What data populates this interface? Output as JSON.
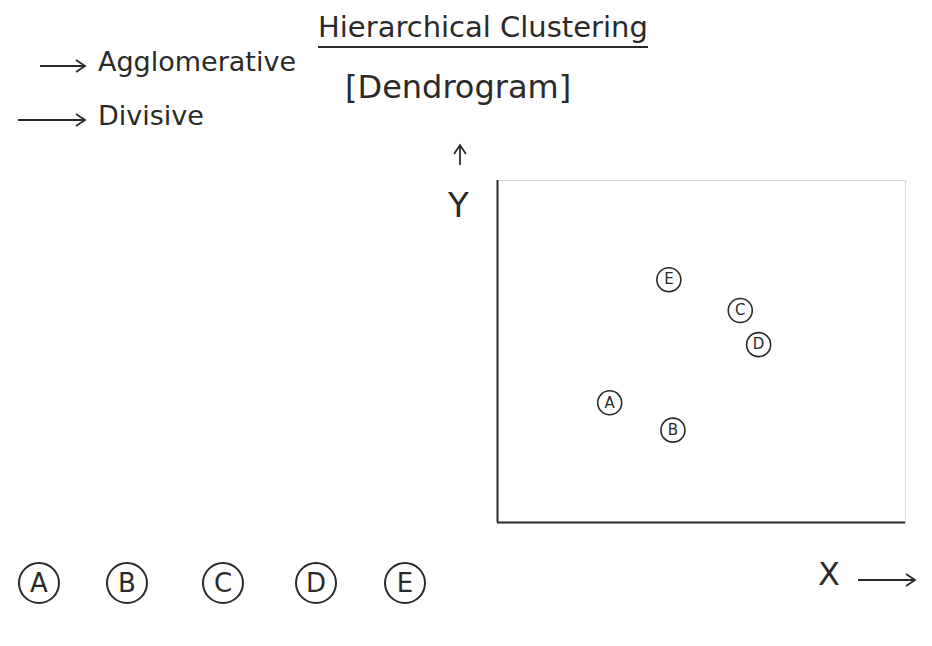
{
  "chart_data": {
    "type": "scatter",
    "title": "Hierarchical Clustering",
    "subtitle": "[Dendrogram]",
    "annotations": [
      "Agglomerative",
      "Divisive"
    ],
    "x_label": "X",
    "y_label": "Y",
    "labels": [
      "A",
      "B",
      "C",
      "D",
      "E"
    ],
    "x": [
      2.75,
      4.3,
      5.95,
      6.4,
      4.2
    ],
    "values": [
      3.5,
      2.7,
      6.2,
      5.2,
      7.1
    ],
    "xlim": [
      0,
      10
    ],
    "ylim": [
      0,
      10
    ],
    "xticks": [],
    "yticks": [],
    "tick_labels": false,
    "grid": false,
    "marker": "circle",
    "color": "#2a2a2a"
  }
}
